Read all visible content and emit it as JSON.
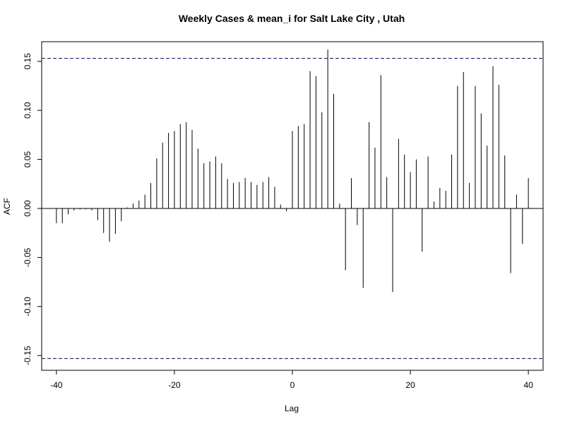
{
  "chart_data": {
    "type": "bar",
    "title": "Weekly Cases & mean_i for Salt Lake City , Utah",
    "xlabel": "Lag",
    "ylabel": "ACF",
    "xlim": [
      -42.5,
      42.5
    ],
    "ylim": [
      -0.165,
      0.17
    ],
    "xticks": [
      -40,
      -20,
      0,
      20,
      40
    ],
    "yticks": [
      -0.15,
      -0.1,
      -0.05,
      0.0,
      0.05,
      0.1,
      0.15
    ],
    "ytick_labels": [
      "-0.15",
      "-0.10",
      "-0.05",
      "0.00",
      "0.05",
      "0.10",
      "0.15"
    ],
    "ci_bounds": [
      0.153,
      -0.153
    ],
    "grid": false,
    "x": [
      -40,
      -39,
      -38,
      -37,
      -36,
      -35,
      -34,
      -33,
      -32,
      -31,
      -30,
      -29,
      -28,
      -27,
      -26,
      -25,
      -24,
      -23,
      -22,
      -21,
      -20,
      -19,
      -18,
      -17,
      -16,
      -15,
      -14,
      -13,
      -12,
      -11,
      -10,
      -9,
      -8,
      -7,
      -6,
      -5,
      -4,
      -3,
      -2,
      -1,
      0,
      1,
      2,
      3,
      4,
      5,
      6,
      7,
      8,
      9,
      10,
      11,
      12,
      13,
      14,
      15,
      16,
      17,
      18,
      19,
      20,
      21,
      22,
      23,
      24,
      25,
      26,
      27,
      28,
      29,
      30,
      31,
      32,
      33,
      34,
      35,
      36,
      37,
      38,
      39,
      40
    ],
    "values": [
      -0.015,
      -0.015,
      -0.006,
      -0.002,
      -0.001,
      -0.001,
      -0.002,
      -0.012,
      -0.025,
      -0.034,
      -0.026,
      -0.013,
      0.001,
      0.005,
      0.008,
      0.014,
      0.026,
      0.051,
      0.067,
      0.077,
      0.079,
      0.086,
      0.088,
      0.08,
      0.061,
      0.046,
      0.048,
      0.053,
      0.046,
      0.03,
      0.026,
      0.027,
      0.031,
      0.027,
      0.024,
      0.027,
      0.032,
      0.022,
      0.004,
      -0.003,
      0.079,
      0.084,
      0.086,
      0.14,
      0.135,
      0.098,
      0.162,
      0.117,
      0.005,
      -0.063,
      0.031,
      -0.017,
      -0.081,
      0.088,
      0.062,
      0.136,
      0.032,
      -0.085,
      0.071,
      0.055,
      0.037,
      0.05,
      -0.044,
      0.053,
      0.007,
      0.021,
      0.018,
      0.055,
      0.125,
      0.139,
      0.026,
      0.125,
      0.097,
      0.064,
      0.145,
      0.126,
      0.054,
      -0.066,
      0.014,
      -0.036,
      0.031
    ]
  }
}
